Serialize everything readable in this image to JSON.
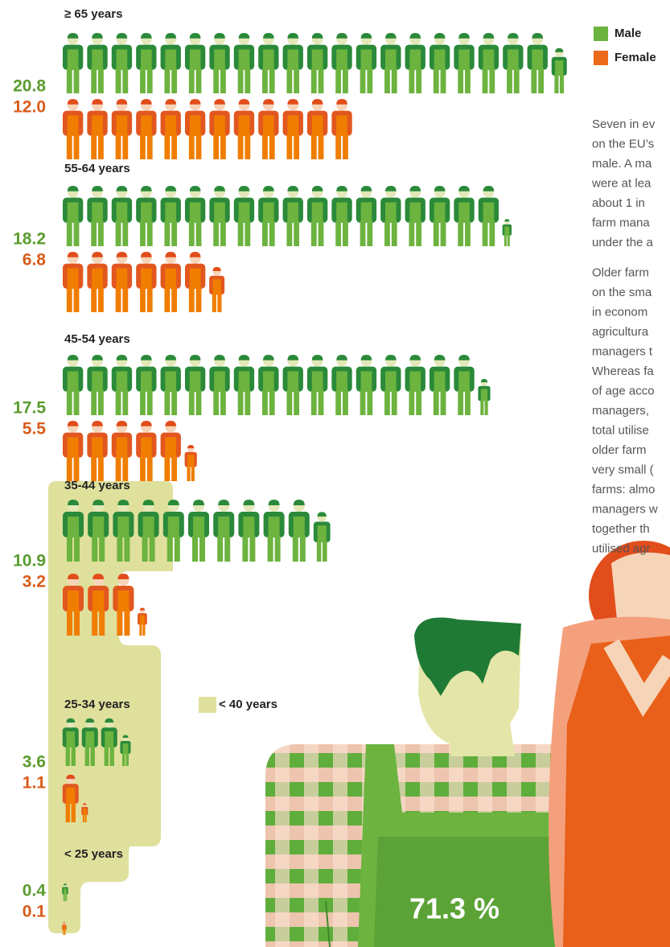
{
  "chart_data": {
    "type": "pictogram",
    "categories": [
      "≥ 65 years",
      "55-64 years",
      "45-54 years",
      "35-44 years",
      "25-34 years",
      "< 25 years"
    ],
    "series": [
      {
        "name": "Male",
        "color": "#6cb33f",
        "values": [
          20.8,
          18.2,
          17.5,
          10.9,
          3.6,
          0.4
        ]
      },
      {
        "name": "Female",
        "color": "#f07d00",
        "values": [
          12.0,
          6.8,
          5.5,
          3.2,
          1.1,
          0.1
        ],
        "value_labels": [
          "12.0",
          "6.8",
          "5.5",
          "3.2",
          "1.1",
          "0.1"
        ]
      }
    ],
    "highlight_label": "< 40 years",
    "highlight_color": "#dfe09c",
    "annotation": "71.3 %"
  },
  "text": {
    "paragraphs": [
      [
        "Seven in ev",
        "on the EU’s",
        "male. A ma",
        "were at lea",
        "about 1 in",
        "farm mana",
        "under the a"
      ],
      [
        "Older farm",
        "on the sma",
        "in econom",
        "agricultura",
        "managers t",
        "Whereas fa",
        "of age acco",
        "managers,",
        "total utilise",
        "older farm",
        "very small (",
        "farms: almo",
        "managers w",
        "together th",
        "utilised agr"
      ]
    ]
  }
}
